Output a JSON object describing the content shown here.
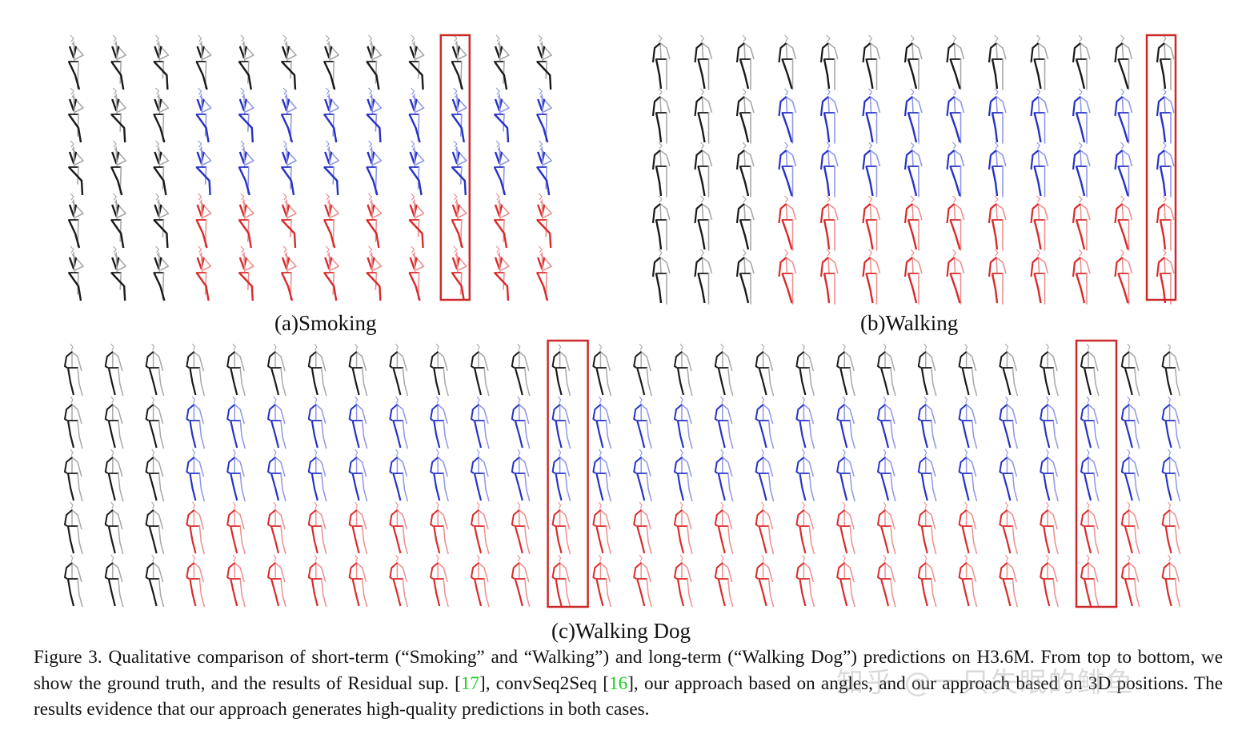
{
  "figure": {
    "number": "Figure 3.",
    "row_legend": [
      "Ground truth",
      "Residual sup. [17]",
      "convSeq2Seq [16]",
      "Ours (angles)",
      "Ours (3D positions)"
    ],
    "colors": {
      "ground_truth_dark": "#1a1a1a",
      "ground_truth_light": "#a8a8a8",
      "blue_dark": "#2633c4",
      "blue_light": "#8f97e6",
      "red_dark": "#d92b2b",
      "red_light": "#ee8f8f",
      "highlight_box": "#cc2a2a",
      "citation": "#1fcf1f"
    },
    "panels": [
      {
        "id": "a",
        "label": "(a)Smoking",
        "columns": 12,
        "rows": 5,
        "conditioning_columns": 3,
        "highlight_column": 10,
        "pose": "smoking"
      },
      {
        "id": "b",
        "label": "(b)Walking",
        "columns": 13,
        "rows": 5,
        "conditioning_columns": 3,
        "highlight_column": 13,
        "pose": "walking"
      },
      {
        "id": "c",
        "label": "(c)Walking Dog",
        "columns": 28,
        "rows": 5,
        "conditioning_columns": 3,
        "highlight_columns": [
          13,
          26
        ],
        "pose": "walkingdog"
      }
    ]
  },
  "caption": {
    "part1": "Figure 3. Qualitative comparison of short-term (“Smoking” and “Walking”) and long-term (“Walking Dog”) predictions on H3.6M. From top to bottom, we show the ground truth, and the results of Residual sup. [",
    "cite1": "17",
    "part2": "], convSeq2Seq [",
    "cite2": "16",
    "part3": "], our approach based on angles, and our approach based on 3D positions. The results evidence that our approach generates high-quality predictions in both cases."
  },
  "watermark": {
    "text": "知乎 @一只失眠的鲱鱼"
  }
}
